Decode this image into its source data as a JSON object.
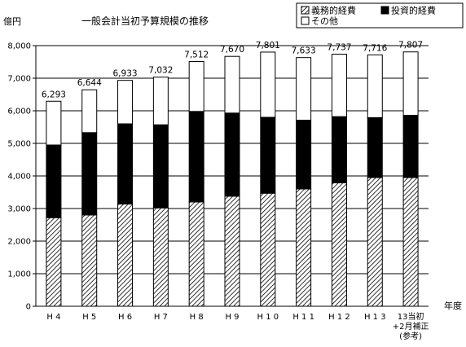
{
  "chart_data": {
    "type": "bar",
    "stacked": true,
    "title": "一般会計当初予算規模の推移",
    "ylabel": "億円",
    "xlabel": "年度",
    "ylim": [
      0,
      8000
    ],
    "yticks": [
      "0",
      "1,000",
      "2,000",
      "3,000",
      "4,000",
      "5,000",
      "6,000",
      "7,000",
      "8,000"
    ],
    "grid": "horizontal",
    "legend_position": "top-right",
    "categories": [
      [
        "H 4"
      ],
      [
        "H 5"
      ],
      [
        "H 6"
      ],
      [
        "H 7"
      ],
      [
        "H 8"
      ],
      [
        "H 9"
      ],
      [
        "H 1 0"
      ],
      [
        "H 1 1"
      ],
      [
        "H 1 2"
      ],
      [
        "H 1 3"
      ],
      [
        "13当初",
        "+2月補正",
        "(参考)"
      ]
    ],
    "totals": [
      6293,
      6644,
      6933,
      7032,
      7512,
      7670,
      7801,
      7633,
      7737,
      7716,
      7807
    ],
    "total_labels": [
      "6,293",
      "6,644",
      "6,933",
      "7,032",
      "7,512",
      "7,670",
      "7,801",
      "7,633",
      "7,737",
      "7,716",
      "7,807"
    ],
    "series": [
      {
        "name": "義務的経費",
        "pattern": "hatch",
        "values": [
          2720,
          2800,
          3140,
          3020,
          3200,
          3380,
          3470,
          3600,
          3790,
          3950,
          3950
        ]
      },
      {
        "name": "投資的経費",
        "color": "#000000",
        "values": [
          2230,
          2530,
          2460,
          2550,
          2780,
          2550,
          2330,
          2110,
          2030,
          1840,
          1910
        ]
      },
      {
        "name": "その他",
        "color": "#ffffff",
        "values": [
          1343,
          1314,
          1333,
          1462,
          1532,
          1740,
          2001,
          1923,
          1917,
          1926,
          1947
        ]
      }
    ]
  }
}
